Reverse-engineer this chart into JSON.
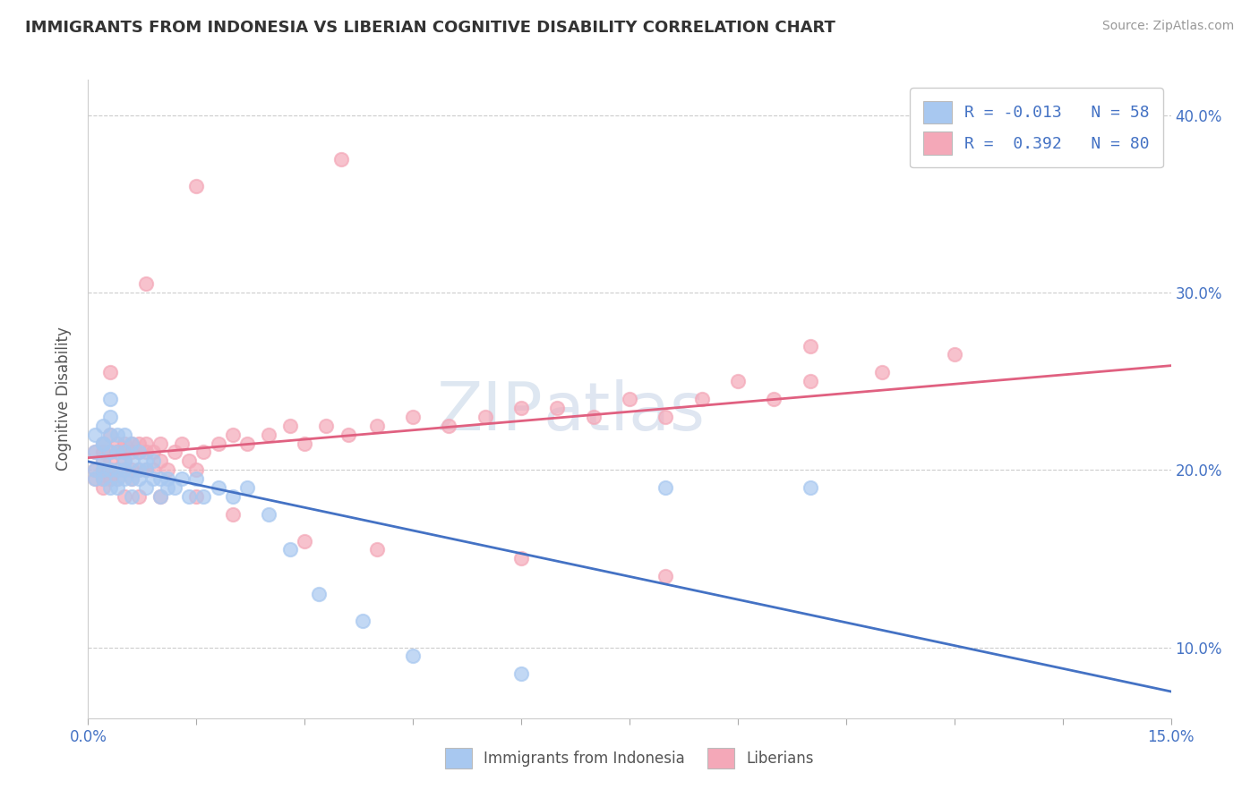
{
  "title": "IMMIGRANTS FROM INDONESIA VS LIBERIAN COGNITIVE DISABILITY CORRELATION CHART",
  "source": "Source: ZipAtlas.com",
  "xlabel": "",
  "ylabel": "Cognitive Disability",
  "xlim": [
    0.0,
    0.15
  ],
  "ylim": [
    0.06,
    0.42
  ],
  "xticks": [
    0.0,
    0.015,
    0.03,
    0.045,
    0.06,
    0.075,
    0.09,
    0.105,
    0.12,
    0.135,
    0.15
  ],
  "xticklabels": [
    "0.0%",
    "",
    "",
    "",
    "",
    "",
    "",
    "",
    "",
    "",
    "15.0%"
  ],
  "yticks": [
    0.1,
    0.2,
    0.3,
    0.4
  ],
  "yticklabels": [
    "10.0%",
    "20.0%",
    "30.0%",
    "40.0%"
  ],
  "color_indonesia": "#a8c8f0",
  "color_liberia": "#f4a8b8",
  "trend_color_indonesia": "#4472c4",
  "trend_color_liberia": "#e06080",
  "watermark": "ZIPatlas",
  "indonesia_x": [
    0.001,
    0.001,
    0.001,
    0.001,
    0.002,
    0.002,
    0.002,
    0.002,
    0.002,
    0.002,
    0.003,
    0.003,
    0.003,
    0.003,
    0.003,
    0.003,
    0.004,
    0.004,
    0.004,
    0.004,
    0.004,
    0.005,
    0.005,
    0.005,
    0.005,
    0.005,
    0.006,
    0.006,
    0.006,
    0.006,
    0.007,
    0.007,
    0.007,
    0.008,
    0.008,
    0.008,
    0.009,
    0.009,
    0.01,
    0.01,
    0.011,
    0.011,
    0.012,
    0.013,
    0.014,
    0.015,
    0.016,
    0.018,
    0.02,
    0.022,
    0.025,
    0.028,
    0.032,
    0.038,
    0.045,
    0.06,
    0.08,
    0.1
  ],
  "indonesia_y": [
    0.22,
    0.21,
    0.2,
    0.195,
    0.215,
    0.205,
    0.2,
    0.195,
    0.215,
    0.225,
    0.2,
    0.21,
    0.19,
    0.22,
    0.23,
    0.24,
    0.2,
    0.21,
    0.22,
    0.195,
    0.19,
    0.2,
    0.21,
    0.22,
    0.195,
    0.205,
    0.195,
    0.205,
    0.215,
    0.185,
    0.2,
    0.21,
    0.195,
    0.2,
    0.19,
    0.205,
    0.195,
    0.205,
    0.185,
    0.195,
    0.19,
    0.195,
    0.19,
    0.195,
    0.185,
    0.195,
    0.185,
    0.19,
    0.185,
    0.19,
    0.175,
    0.155,
    0.13,
    0.115,
    0.095,
    0.085,
    0.19,
    0.19
  ],
  "liberia_x": [
    0.001,
    0.001,
    0.001,
    0.002,
    0.002,
    0.002,
    0.002,
    0.002,
    0.003,
    0.003,
    0.003,
    0.003,
    0.003,
    0.004,
    0.004,
    0.004,
    0.004,
    0.005,
    0.005,
    0.005,
    0.005,
    0.006,
    0.006,
    0.006,
    0.006,
    0.007,
    0.007,
    0.007,
    0.008,
    0.008,
    0.008,
    0.009,
    0.009,
    0.01,
    0.01,
    0.011,
    0.012,
    0.013,
    0.014,
    0.015,
    0.016,
    0.018,
    0.02,
    0.022,
    0.025,
    0.028,
    0.03,
    0.033,
    0.036,
    0.04,
    0.045,
    0.05,
    0.055,
    0.06,
    0.065,
    0.07,
    0.075,
    0.08,
    0.085,
    0.09,
    0.095,
    0.1,
    0.11,
    0.12,
    0.002,
    0.003,
    0.005,
    0.007,
    0.01,
    0.015,
    0.02,
    0.03,
    0.04,
    0.06,
    0.08,
    0.1,
    0.003,
    0.008,
    0.015,
    0.035
  ],
  "liberia_y": [
    0.21,
    0.195,
    0.2,
    0.215,
    0.195,
    0.2,
    0.21,
    0.205,
    0.205,
    0.21,
    0.195,
    0.22,
    0.2,
    0.21,
    0.2,
    0.215,
    0.195,
    0.21,
    0.2,
    0.215,
    0.205,
    0.215,
    0.2,
    0.21,
    0.195,
    0.21,
    0.2,
    0.215,
    0.21,
    0.2,
    0.215,
    0.21,
    0.2,
    0.215,
    0.205,
    0.2,
    0.21,
    0.215,
    0.205,
    0.2,
    0.21,
    0.215,
    0.22,
    0.215,
    0.22,
    0.225,
    0.215,
    0.225,
    0.22,
    0.225,
    0.23,
    0.225,
    0.23,
    0.235,
    0.235,
    0.23,
    0.24,
    0.23,
    0.24,
    0.25,
    0.24,
    0.25,
    0.255,
    0.265,
    0.19,
    0.195,
    0.185,
    0.185,
    0.185,
    0.185,
    0.175,
    0.16,
    0.155,
    0.15,
    0.14,
    0.27,
    0.255,
    0.305,
    0.36,
    0.375
  ]
}
